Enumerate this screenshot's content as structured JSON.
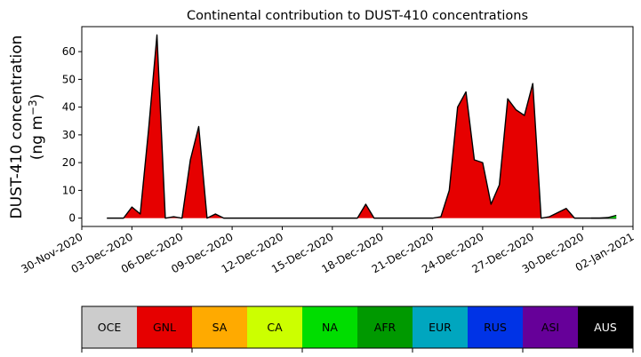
{
  "chart_data": {
    "type": "area",
    "title": "Continental contribution to DUST-410 concentrations",
    "ylabel_line1": "DUST-410 concentration",
    "ylabel_line2_prefix": "(ng m",
    "ylabel_line2_sup": "−3",
    "ylabel_line2_suffix": ")",
    "xlabel": "",
    "ylim": [
      -3,
      69
    ],
    "yticks": [
      0,
      10,
      20,
      30,
      40,
      50,
      60
    ],
    "x_range": [
      "2020-11-30",
      "2021-01-02"
    ],
    "xticks": [
      {
        "date": "2020-11-30",
        "label": "30-Nov-2020"
      },
      {
        "date": "2020-12-03",
        "label": "03-Dec-2020"
      },
      {
        "date": "2020-12-06",
        "label": "06-Dec-2020"
      },
      {
        "date": "2020-12-09",
        "label": "09-Dec-2020"
      },
      {
        "date": "2020-12-12",
        "label": "12-Dec-2020"
      },
      {
        "date": "2020-12-15",
        "label": "15-Dec-2020"
      },
      {
        "date": "2020-12-18",
        "label": "18-Dec-2020"
      },
      {
        "date": "2020-12-21",
        "label": "21-Dec-2020"
      },
      {
        "date": "2020-12-24",
        "label": "24-Dec-2020"
      },
      {
        "date": "2020-12-27",
        "label": "27-Dec-2020"
      },
      {
        "date": "2020-12-30",
        "label": "30-Dec-2020"
      },
      {
        "date": "2021-01-02",
        "label": "02-Jan-2021"
      }
    ],
    "series": [
      {
        "name": "GNL",
        "color": "#e60000",
        "points": [
          [
            "2020-12-01T12:00",
            0.0
          ],
          [
            "2020-12-02T12:00",
            0.0
          ],
          [
            "2020-12-03T00:00",
            4.0
          ],
          [
            "2020-12-03T12:00",
            1.5
          ],
          [
            "2020-12-04T00:00",
            32.0
          ],
          [
            "2020-12-04T12:00",
            66.0
          ],
          [
            "2020-12-05T00:00",
            0.0
          ],
          [
            "2020-12-05T12:00",
            0.5
          ],
          [
            "2020-12-06T00:00",
            0.0
          ],
          [
            "2020-12-06T12:00",
            21.0
          ],
          [
            "2020-12-07T00:00",
            33.0
          ],
          [
            "2020-12-07T12:00",
            0.0
          ],
          [
            "2020-12-08T00:00",
            1.5
          ],
          [
            "2020-12-08T12:00",
            0.0
          ],
          [
            "2020-12-16T12:00",
            0.0
          ],
          [
            "2020-12-17T00:00",
            5.0
          ],
          [
            "2020-12-17T12:00",
            0.0
          ],
          [
            "2020-12-21T00:00",
            0.0
          ],
          [
            "2020-12-21T12:00",
            0.5
          ],
          [
            "2020-12-22T00:00",
            10.0
          ],
          [
            "2020-12-22T12:00",
            40.0
          ],
          [
            "2020-12-23T00:00",
            45.5
          ],
          [
            "2020-12-23T12:00",
            21.0
          ],
          [
            "2020-12-24T00:00",
            20.0
          ],
          [
            "2020-12-24T12:00",
            5.0
          ],
          [
            "2020-12-25T00:00",
            12.0
          ],
          [
            "2020-12-25T12:00",
            43.0
          ],
          [
            "2020-12-26T00:00",
            39.0
          ],
          [
            "2020-12-26T12:00",
            37.0
          ],
          [
            "2020-12-27T00:00",
            48.5
          ],
          [
            "2020-12-27T12:00",
            0.0
          ],
          [
            "2020-12-28T00:00",
            0.5
          ],
          [
            "2020-12-28T12:00",
            2.0
          ],
          [
            "2020-12-29T00:00",
            3.5
          ],
          [
            "2020-12-29T12:00",
            0.0
          ],
          [
            "2021-01-01T00:00",
            0.0
          ]
        ]
      },
      {
        "name": "NA",
        "color": "#00dd00",
        "points": [
          [
            "2020-12-30T12:00",
            0.0
          ],
          [
            "2020-12-31T00:00",
            0.0
          ],
          [
            "2020-12-31T12:00",
            0.2
          ],
          [
            "2021-01-01T00:00",
            1.0
          ]
        ]
      }
    ],
    "legend": {
      "placement": "bottom",
      "entries": [
        {
          "label": "OCE",
          "color": "#cccccc",
          "text_color": "#000000"
        },
        {
          "label": "GNL",
          "color": "#e60000",
          "text_color": "#000000"
        },
        {
          "label": "SA",
          "color": "#ffaa00",
          "text_color": "#000000"
        },
        {
          "label": "CA",
          "color": "#ccff00",
          "text_color": "#000000"
        },
        {
          "label": "NA",
          "color": "#00dd00",
          "text_color": "#000000"
        },
        {
          "label": "AFR",
          "color": "#009900",
          "text_color": "#000000"
        },
        {
          "label": "EUR",
          "color": "#00a6bf",
          "text_color": "#000000"
        },
        {
          "label": "RUS",
          "color": "#0033e6",
          "text_color": "#000000"
        },
        {
          "label": "ASI",
          "color": "#660099",
          "text_color": "#000000"
        },
        {
          "label": "AUS",
          "color": "#000000",
          "text_color": "#ffffff"
        }
      ]
    },
    "grid": false
  }
}
